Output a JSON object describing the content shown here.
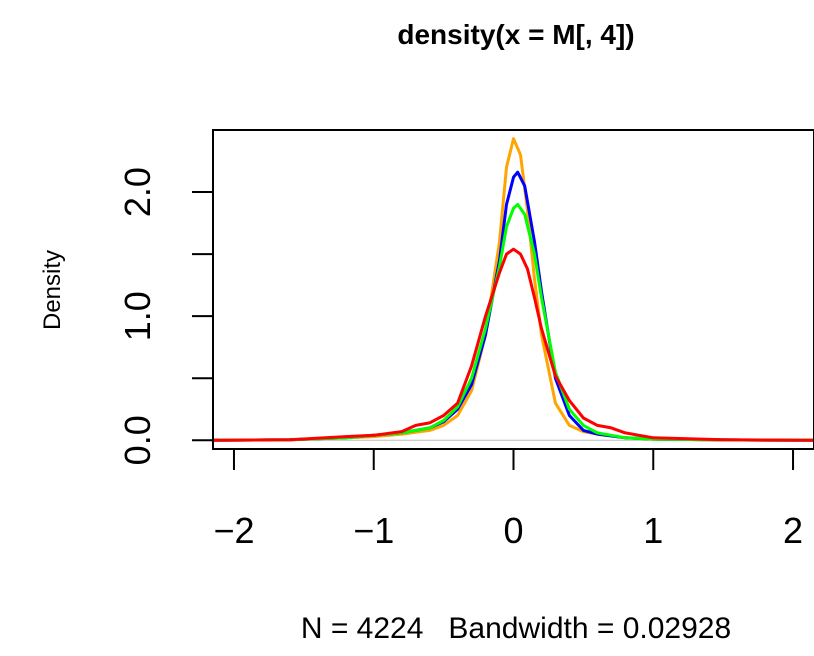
{
  "chart_data": {
    "type": "line",
    "title": "density(x = M[, 4])",
    "xlabel": "N = 4224   Bandwidth = 0.02928",
    "ylabel": "Density",
    "xlim": [
      -2.15,
      2.15
    ],
    "ylim": [
      -0.07,
      2.5
    ],
    "x_ticks": [
      -2,
      -1,
      0,
      1,
      2
    ],
    "x_tick_labels": [
      "−2",
      "−1",
      "0",
      "1",
      "2"
    ],
    "y_ticks": [
      0.0,
      0.5,
      1.0,
      1.5,
      2.0
    ],
    "y_tick_labels": [
      "0.0",
      "",
      "1.0",
      "",
      "2.0"
    ],
    "grid": false,
    "baseline": 0,
    "baseline_color": "#bebebe",
    "series": [
      {
        "color": "#ffa500",
        "points": [
          [
            -2.15,
            0
          ],
          [
            -1.6,
            0.005
          ],
          [
            -1.2,
            0.02
          ],
          [
            -1.0,
            0.03
          ],
          [
            -0.8,
            0.05
          ],
          [
            -0.6,
            0.08
          ],
          [
            -0.5,
            0.12
          ],
          [
            -0.4,
            0.2
          ],
          [
            -0.3,
            0.4
          ],
          [
            -0.2,
            0.85
          ],
          [
            -0.1,
            1.6
          ],
          [
            -0.05,
            2.2
          ],
          [
            0,
            2.43
          ],
          [
            0.05,
            2.3
          ],
          [
            0.1,
            1.85
          ],
          [
            0.15,
            1.3
          ],
          [
            0.2,
            0.85
          ],
          [
            0.3,
            0.3
          ],
          [
            0.4,
            0.12
          ],
          [
            0.5,
            0.07
          ],
          [
            0.6,
            0.05
          ],
          [
            0.8,
            0.02
          ],
          [
            1.0,
            0.01
          ],
          [
            1.5,
            0.003
          ],
          [
            2.15,
            0
          ]
        ]
      },
      {
        "color": "#0000ff",
        "points": [
          [
            -2.15,
            0
          ],
          [
            -1.6,
            0.005
          ],
          [
            -1.2,
            0.02
          ],
          [
            -1.0,
            0.04
          ],
          [
            -0.8,
            0.06
          ],
          [
            -0.6,
            0.1
          ],
          [
            -0.5,
            0.15
          ],
          [
            -0.4,
            0.25
          ],
          [
            -0.3,
            0.45
          ],
          [
            -0.2,
            0.85
          ],
          [
            -0.1,
            1.45
          ],
          [
            -0.05,
            1.9
          ],
          [
            0,
            2.12
          ],
          [
            0.03,
            2.16
          ],
          [
            0.08,
            2.05
          ],
          [
            0.15,
            1.6
          ],
          [
            0.2,
            1.2
          ],
          [
            0.3,
            0.5
          ],
          [
            0.4,
            0.2
          ],
          [
            0.5,
            0.08
          ],
          [
            0.6,
            0.05
          ],
          [
            0.8,
            0.02
          ],
          [
            1.0,
            0.01
          ],
          [
            1.5,
            0.003
          ],
          [
            2.15,
            0
          ]
        ]
      },
      {
        "color": "#00ff00",
        "points": [
          [
            -2.15,
            0
          ],
          [
            -1.6,
            0.005
          ],
          [
            -1.2,
            0.02
          ],
          [
            -1.0,
            0.04
          ],
          [
            -0.8,
            0.06
          ],
          [
            -0.6,
            0.1
          ],
          [
            -0.5,
            0.16
          ],
          [
            -0.4,
            0.27
          ],
          [
            -0.3,
            0.5
          ],
          [
            -0.2,
            0.9
          ],
          [
            -0.1,
            1.4
          ],
          [
            -0.05,
            1.72
          ],
          [
            0,
            1.87
          ],
          [
            0.03,
            1.9
          ],
          [
            0.08,
            1.82
          ],
          [
            0.15,
            1.5
          ],
          [
            0.2,
            1.15
          ],
          [
            0.3,
            0.55
          ],
          [
            0.4,
            0.25
          ],
          [
            0.5,
            0.12
          ],
          [
            0.6,
            0.06
          ],
          [
            0.8,
            0.02
          ],
          [
            1.0,
            0.01
          ],
          [
            1.5,
            0.003
          ],
          [
            2.15,
            0
          ]
        ]
      },
      {
        "color": "#ff0000",
        "points": [
          [
            -2.15,
            0
          ],
          [
            -1.6,
            0.005
          ],
          [
            -1.2,
            0.03
          ],
          [
            -1.0,
            0.04
          ],
          [
            -0.8,
            0.07
          ],
          [
            -0.7,
            0.12
          ],
          [
            -0.6,
            0.14
          ],
          [
            -0.5,
            0.2
          ],
          [
            -0.4,
            0.3
          ],
          [
            -0.3,
            0.6
          ],
          [
            -0.2,
            1.0
          ],
          [
            -0.1,
            1.35
          ],
          [
            -0.05,
            1.5
          ],
          [
            0,
            1.54
          ],
          [
            0.05,
            1.5
          ],
          [
            0.1,
            1.38
          ],
          [
            0.15,
            1.15
          ],
          [
            0.2,
            0.9
          ],
          [
            0.3,
            0.52
          ],
          [
            0.4,
            0.32
          ],
          [
            0.5,
            0.18
          ],
          [
            0.6,
            0.12
          ],
          [
            0.7,
            0.1
          ],
          [
            0.8,
            0.06
          ],
          [
            1.0,
            0.02
          ],
          [
            1.5,
            0.005
          ],
          [
            2.15,
            0
          ]
        ]
      }
    ]
  }
}
